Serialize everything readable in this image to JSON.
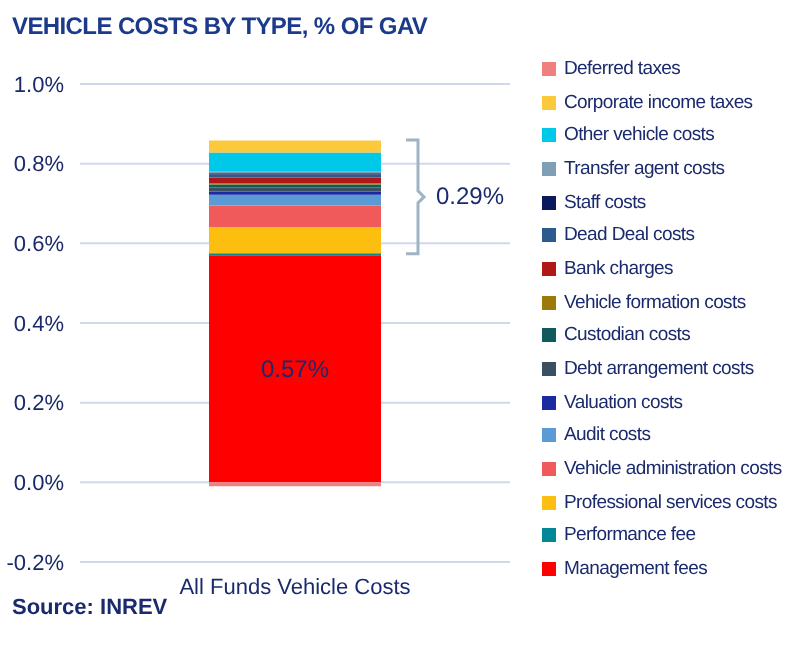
{
  "chart_data": {
    "type": "bar",
    "title": "VEHICLE COSTS BY TYPE, % OF GAV",
    "stacked": true,
    "categories": [
      "All Funds Vehicle Costs"
    ],
    "series": [
      {
        "name": "Management fees",
        "color": "#ff0000",
        "values": [
          0.57
        ],
        "value_labels": [
          "0.57%"
        ]
      },
      {
        "name": "Performance fee",
        "color": "#008898",
        "values": [
          0.005
        ]
      },
      {
        "name": "Professional services costs",
        "color": "#fcbf10",
        "values": [
          0.066
        ]
      },
      {
        "name": "Vehicle administration costs",
        "color": "#f05a5a",
        "values": [
          0.054
        ]
      },
      {
        "name": "Audit costs",
        "color": "#5b9bd5",
        "values": [
          0.027
        ]
      },
      {
        "name": "Valuation costs",
        "color": "#1a2aa0",
        "values": [
          0.008
        ]
      },
      {
        "name": "Debt arrangement costs",
        "color": "#3a4f5f",
        "values": [
          0.01
        ]
      },
      {
        "name": "Custodian costs",
        "color": "#0f5a5a",
        "values": [
          0.008
        ]
      },
      {
        "name": "Vehicle formation costs",
        "color": "#9c7a0a",
        "values": [
          0.003
        ]
      },
      {
        "name": "Bank charges",
        "color": "#b01818",
        "values": [
          0.014
        ]
      },
      {
        "name": "Dead Deal costs",
        "color": "#2a5b8c",
        "values": [
          0.008
        ]
      },
      {
        "name": "Staff costs",
        "color": "#0a1a5c",
        "values": [
          0.003
        ]
      },
      {
        "name": "Transfer agent costs",
        "color": "#7f9fb5",
        "values": [
          0.005
        ]
      },
      {
        "name": "Other vehicle costs",
        "color": "#00c8e8",
        "values": [
          0.047
        ]
      },
      {
        "name": "Corporate income taxes",
        "color": "#fcc93c",
        "values": [
          0.03
        ]
      },
      {
        "name": "Deferred taxes",
        "color": "#f08080",
        "values": [
          -0.01
        ]
      }
    ],
    "ylim": [
      -0.2,
      1.0
    ],
    "yticks": [
      {
        "value": -0.2,
        "label": "-0.2%"
      },
      {
        "value": 0,
        "label": "0.0%"
      },
      {
        "value": 0.2,
        "label": "0.2%"
      },
      {
        "value": 0.4,
        "label": "0.4%"
      },
      {
        "value": 0.6,
        "label": "0.6%"
      },
      {
        "value": 0.8,
        "label": "0.8%"
      },
      {
        "value": 1.0,
        "label": "1.0%"
      }
    ],
    "grid": "y",
    "legend": "right",
    "annotations": [
      "0.29%",
      "Source: INREV"
    ]
  }
}
